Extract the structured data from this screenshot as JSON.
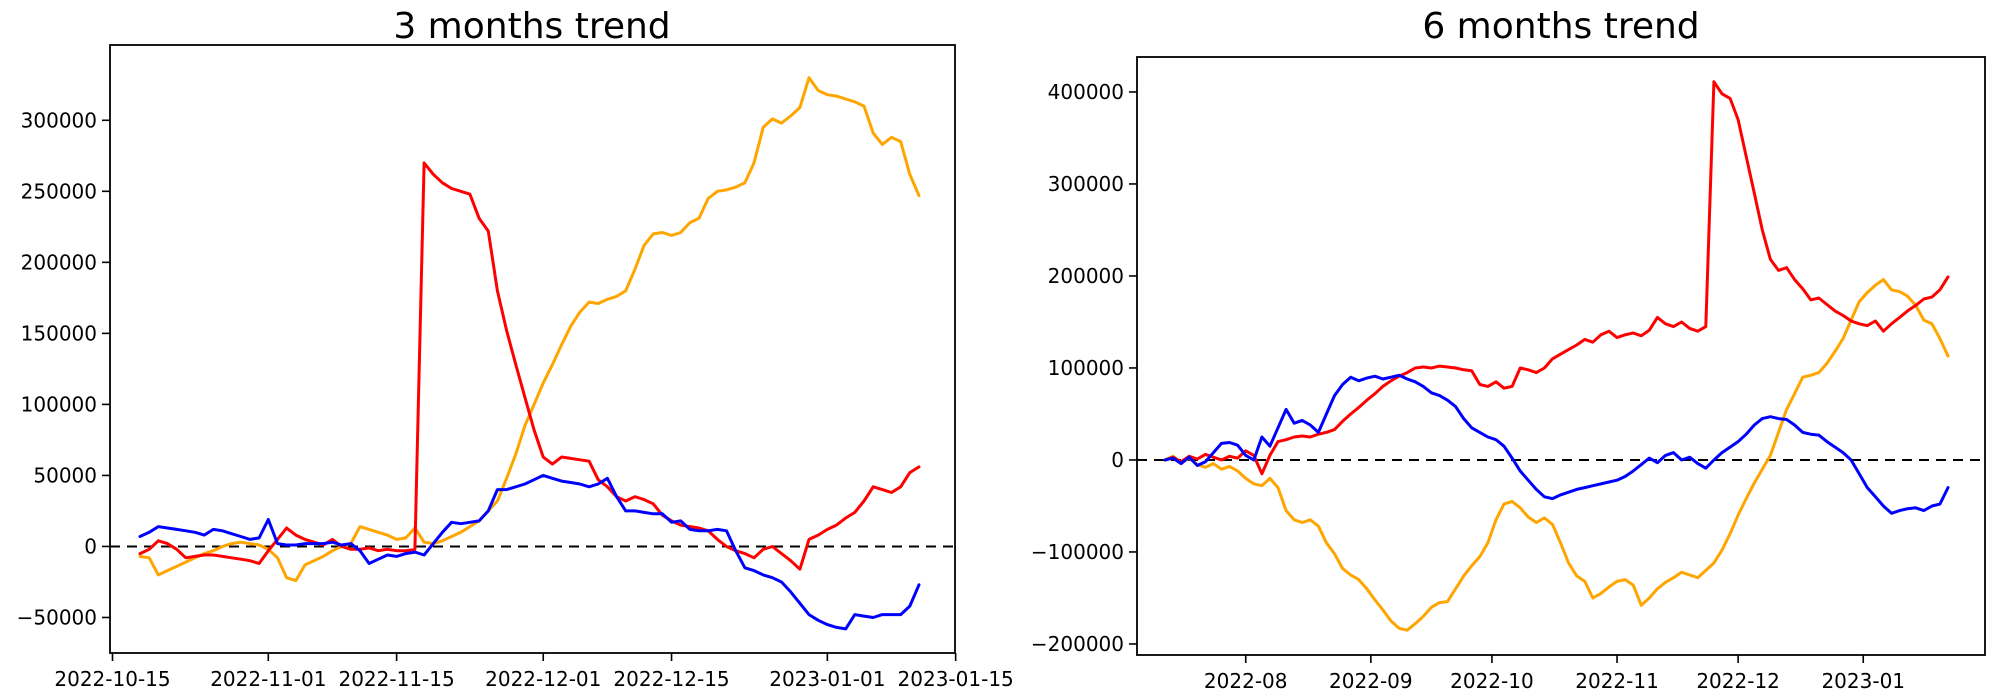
{
  "figure": {
    "background": "#ffffff"
  },
  "chart_data": [
    {
      "type": "line",
      "title": "3 months trend",
      "grid": false,
      "legend": false,
      "zero_line": {
        "style": "dashed",
        "color": "#000000",
        "y": 0
      },
      "ylim": [
        -75000,
        353000
      ],
      "yticks": {
        "values": [
          -50000,
          0,
          50000,
          100000,
          150000,
          200000,
          250000,
          300000
        ],
        "labels": [
          "−50000",
          "0",
          "50000",
          "100000",
          "150000",
          "200000",
          "250000",
          "300000"
        ]
      },
      "x_axis": {
        "tick_labels": [
          "2022-10-15",
          "2022-11-01",
          "2022-11-15",
          "2022-12-01",
          "2022-12-15",
          "2023-01-01",
          "2023-01-15"
        ],
        "tick_pos": [
          -3,
          14,
          28,
          44,
          58,
          75,
          89
        ]
      },
      "series": [
        {
          "name": "orange",
          "color": "#ffa500",
          "values": [
            -7000,
            -8000,
            -20000,
            -17000,
            -14000,
            -11000,
            -8000,
            -5000,
            -3000,
            0,
            2000,
            3000,
            2000,
            1000,
            -2000,
            -8000,
            -22000,
            -24000,
            -13000,
            -10000,
            -7000,
            -3000,
            0,
            2000,
            14000,
            12000,
            10000,
            8000,
            5000,
            6000,
            13000,
            3000,
            2000,
            4000,
            7000,
            10000,
            14000,
            18000,
            25000,
            32000,
            48000,
            65000,
            85000,
            100000,
            115000,
            128000,
            142000,
            155000,
            165000,
            172000,
            171000,
            174000,
            176000,
            180000,
            195000,
            212000,
            220000,
            221000,
            219000,
            221000,
            228000,
            231000,
            245000,
            250000,
            251000,
            253000,
            256000,
            270000,
            295000,
            301000,
            298000,
            303000,
            309000,
            330000,
            321000,
            318000,
            317000,
            315000,
            313000,
            310000,
            291000,
            283000,
            288000,
            285000,
            262000,
            247000
          ]
        },
        {
          "name": "red",
          "color": "#ff0000",
          "values": [
            -5000,
            -2000,
            4000,
            2000,
            -2000,
            -8000,
            -7000,
            -6000,
            -6000,
            -7000,
            -8000,
            -9000,
            -10000,
            -12000,
            -3000,
            5000,
            13000,
            8000,
            5000,
            3000,
            1000,
            5000,
            0,
            -2000,
            -2000,
            -1000,
            -3000,
            -2000,
            -3000,
            -3000,
            -2000,
            270000,
            262000,
            256000,
            252000,
            250000,
            248000,
            231000,
            222000,
            180000,
            152000,
            128000,
            105000,
            82000,
            63000,
            58000,
            63000,
            62000,
            61000,
            60000,
            47000,
            42000,
            35000,
            32000,
            35000,
            33000,
            30000,
            22000,
            18000,
            15000,
            14000,
            13000,
            11000,
            5000,
            0,
            -3000,
            -5000,
            -8000,
            -2000,
            0,
            -5000,
            -10000,
            -16000,
            5000,
            8000,
            12000,
            15000,
            20000,
            24000,
            32000,
            42000,
            40000,
            38000,
            42000,
            52000,
            56000
          ]
        },
        {
          "name": "blue",
          "color": "#0000ff",
          "values": [
            7000,
            10000,
            14000,
            13000,
            12000,
            11000,
            10000,
            8000,
            12000,
            11000,
            9000,
            7000,
            5000,
            6000,
            19000,
            2000,
            1000,
            1000,
            2000,
            2000,
            2000,
            3000,
            1000,
            2000,
            -3000,
            -12000,
            -9000,
            -6000,
            -7000,
            -5000,
            -4000,
            -6000,
            2000,
            10000,
            17000,
            16000,
            17000,
            18000,
            25000,
            40000,
            40000,
            42000,
            44000,
            47000,
            50000,
            48000,
            46000,
            45000,
            44000,
            42000,
            44000,
            48000,
            35000,
            25000,
            25000,
            24000,
            23000,
            23000,
            17000,
            18000,
            12000,
            11000,
            11000,
            12000,
            11000,
            -3000,
            -15000,
            -17000,
            -20000,
            -22000,
            -25000,
            -32000,
            -40000,
            -48000,
            -52000,
            -55000,
            -57000,
            -58000,
            -48000,
            -49000,
            -50000,
            -48000,
            -48000,
            -48000,
            -42000,
            -27000
          ]
        }
      ]
    },
    {
      "type": "line",
      "title": "6 months trend",
      "grid": false,
      "legend": false,
      "zero_line": {
        "style": "dashed",
        "color": "#000000",
        "y": 0
      },
      "ylim": [
        -212000,
        438000
      ],
      "yticks": {
        "values": [
          -200000,
          -100000,
          0,
          100000,
          200000,
          300000,
          400000
        ],
        "labels": [
          "−200000",
          "−100000",
          "0",
          "100000",
          "200000",
          "300000",
          "400000"
        ]
      },
      "x_axis": {
        "tick_labels": [
          "2022-08",
          "2022-09",
          "2022-10",
          "2022-11",
          "2022-12",
          "2023-01"
        ],
        "tick_pos": [
          10,
          25.5,
          40.5,
          56,
          71,
          86.5
        ]
      },
      "series": [
        {
          "name": "orange",
          "color": "#ffa500",
          "values": [
            0,
            4000,
            -3000,
            2000,
            -5000,
            -8000,
            -4000,
            -10000,
            -7000,
            -12000,
            -20000,
            -26000,
            -28000,
            -20000,
            -30000,
            -55000,
            -65000,
            -68000,
            -65000,
            -72000,
            -90000,
            -102000,
            -118000,
            -125000,
            -130000,
            -140000,
            -152000,
            -163000,
            -175000,
            -183000,
            -185000,
            -178000,
            -170000,
            -160000,
            -155000,
            -154000,
            -140000,
            -126000,
            -115000,
            -105000,
            -90000,
            -65000,
            -48000,
            -45000,
            -52000,
            -62000,
            -68000,
            -63000,
            -70000,
            -90000,
            -112000,
            -126000,
            -132000,
            -150000,
            -145000,
            -138000,
            -132000,
            -130000,
            -136000,
            -158000,
            -150000,
            -140000,
            -133000,
            -128000,
            -122000,
            -125000,
            -128000,
            -120000,
            -112000,
            -98000,
            -80000,
            -60000,
            -42000,
            -25000,
            -10000,
            5000,
            30000,
            55000,
            72000,
            90000,
            92000,
            95000,
            105000,
            118000,
            132000,
            152000,
            172000,
            182000,
            190000,
            196000,
            185000,
            183000,
            178000,
            168000,
            152000,
            148000,
            132000,
            113000
          ]
        },
        {
          "name": "red",
          "color": "#ff0000",
          "values": [
            0,
            3000,
            -2000,
            4000,
            1000,
            6000,
            3000,
            0,
            4000,
            2000,
            10000,
            5000,
            -15000,
            5000,
            20000,
            22000,
            25000,
            26000,
            25000,
            28000,
            30000,
            33000,
            42000,
            50000,
            57000,
            65000,
            72000,
            80000,
            86000,
            91000,
            95000,
            100000,
            101000,
            100000,
            102000,
            101000,
            100000,
            98000,
            97000,
            82000,
            80000,
            85000,
            78000,
            80000,
            100000,
            98000,
            95000,
            100000,
            110000,
            115000,
            120000,
            125000,
            131000,
            128000,
            136000,
            140000,
            133000,
            136000,
            138000,
            135000,
            141000,
            155000,
            148000,
            145000,
            150000,
            143000,
            140000,
            145000,
            411000,
            398000,
            393000,
            370000,
            330000,
            290000,
            250000,
            218000,
            206000,
            209000,
            196000,
            186000,
            174000,
            176000,
            169000,
            162000,
            157000,
            151000,
            148000,
            146000,
            151000,
            140000,
            148000,
            155000,
            162000,
            168000,
            175000,
            177000,
            185000,
            199000
          ]
        },
        {
          "name": "blue",
          "color": "#0000ff",
          "values": [
            0,
            2000,
            -4000,
            3000,
            -6000,
            -2000,
            8000,
            18000,
            19000,
            16000,
            5000,
            0,
            25000,
            15000,
            35000,
            55000,
            40000,
            43000,
            38000,
            30000,
            50000,
            70000,
            82000,
            90000,
            86000,
            89000,
            91000,
            88000,
            90000,
            92000,
            88000,
            85000,
            80000,
            73000,
            70000,
            65000,
            58000,
            45000,
            35000,
            30000,
            25000,
            22000,
            15000,
            2000,
            -12000,
            -22000,
            -32000,
            -40000,
            -42000,
            -38000,
            -35000,
            -32000,
            -30000,
            -28000,
            -26000,
            -24000,
            -22000,
            -18000,
            -12000,
            -5000,
            2000,
            -3000,
            5000,
            8000,
            0,
            3000,
            -4000,
            -9000,
            0,
            8000,
            14000,
            20000,
            28000,
            38000,
            45000,
            47000,
            45000,
            44000,
            38000,
            30000,
            28000,
            27000,
            20000,
            14000,
            8000,
            0,
            -15000,
            -30000,
            -40000,
            -50000,
            -58000,
            -55000,
            -53000,
            -52000,
            -55000,
            -50000,
            -48000,
            -30000
          ]
        }
      ]
    }
  ]
}
